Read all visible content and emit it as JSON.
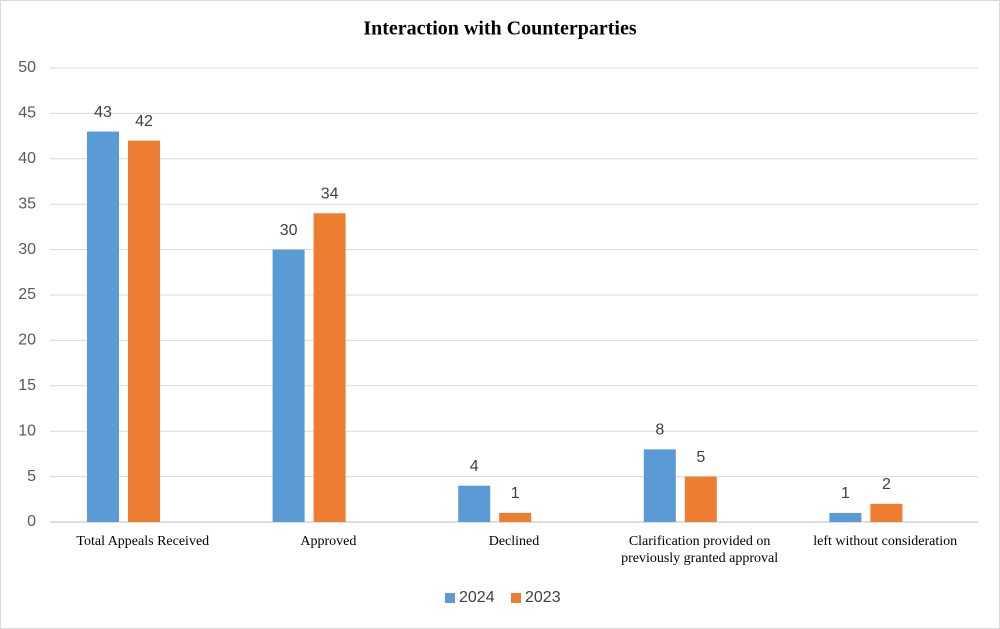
{
  "chart_data": {
    "type": "bar",
    "title": "Interaction with Counterparties",
    "categories": [
      "Total Appeals Received",
      "Approved",
      "Declined",
      "Clarification provided on previously granted approval",
      "left without consideration"
    ],
    "series": [
      {
        "name": "2024",
        "color": "#5b9bd5",
        "values": [
          43,
          30,
          4,
          8,
          1
        ]
      },
      {
        "name": "2023",
        "color": "#ed7d31",
        "values": [
          42,
          34,
          1,
          5,
          2
        ]
      }
    ],
    "ylim": [
      0,
      50
    ],
    "yticks": [
      0,
      5,
      10,
      15,
      20,
      25,
      30,
      35,
      40,
      45,
      50
    ],
    "grid": true,
    "legend": "bottom"
  }
}
